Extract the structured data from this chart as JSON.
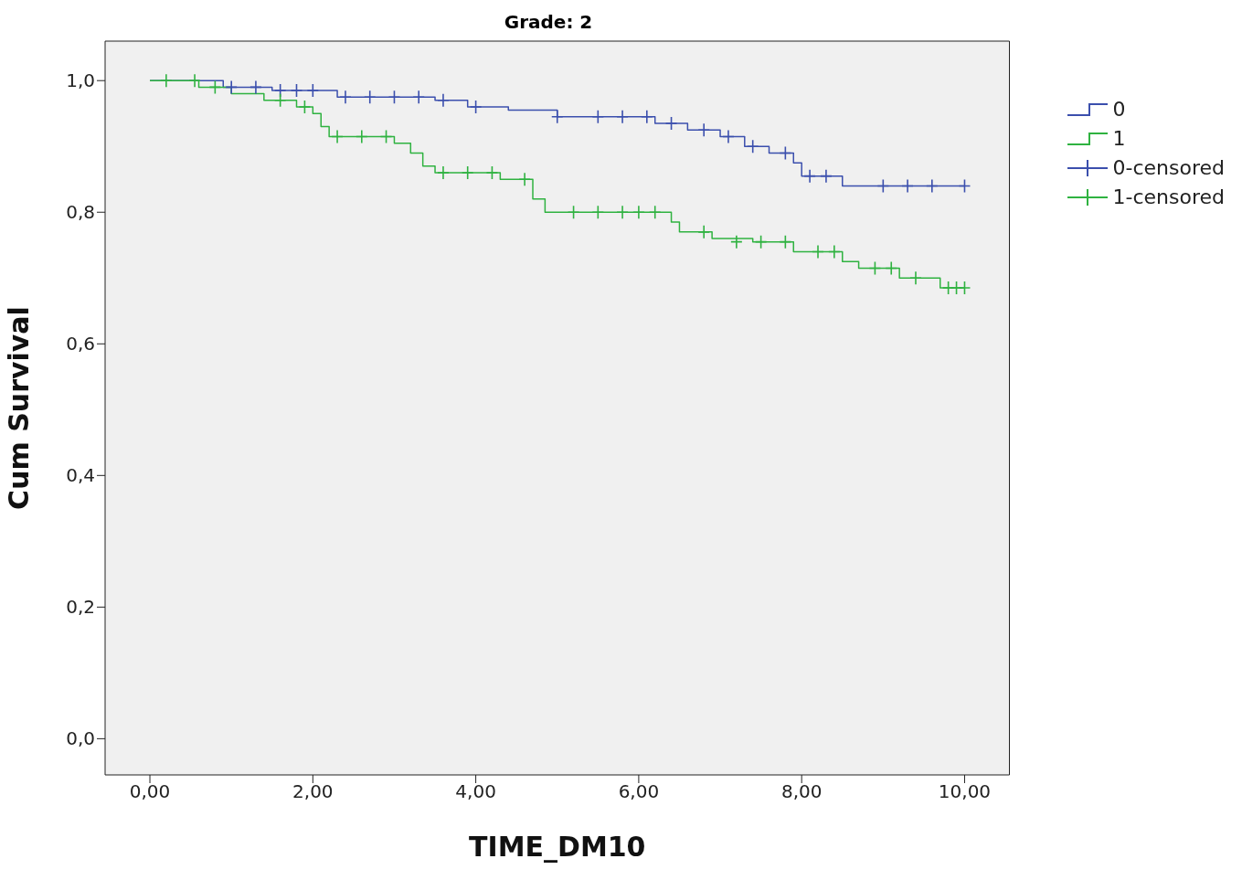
{
  "chart_data": {
    "type": "step",
    "title": "Grade: 2",
    "xlabel": "TIME_DM10",
    "ylabel": "Cum Survival",
    "xlim": [
      -0.55,
      10.55
    ],
    "ylim": [
      -0.055,
      1.06
    ],
    "xticks": [
      {
        "value": 0,
        "label": "0,00"
      },
      {
        "value": 2,
        "label": "2,00"
      },
      {
        "value": 4,
        "label": "4,00"
      },
      {
        "value": 6,
        "label": "6,00"
      },
      {
        "value": 8,
        "label": "8,00"
      },
      {
        "value": 10,
        "label": "10,00"
      }
    ],
    "yticks": [
      {
        "value": 0,
        "label": "0,0"
      },
      {
        "value": 0.2,
        "label": "0,2"
      },
      {
        "value": 0.4,
        "label": "0,4"
      },
      {
        "value": 0.6,
        "label": "0,6"
      },
      {
        "value": 0.8,
        "label": "0,8"
      },
      {
        "value": 1,
        "label": "1,0"
      }
    ],
    "grid": false,
    "legend": "top right",
    "series": [
      {
        "name": "0",
        "color": "#3b4fad",
        "x": [
          0,
          0.9,
          1.5,
          2.3,
          3.5,
          3.9,
          4.4,
          5.0,
          6.2,
          6.6,
          7.0,
          7.3,
          7.6,
          7.9,
          8.0,
          8.5,
          10.0
        ],
        "values": [
          1.0,
          0.99,
          0.985,
          0.975,
          0.97,
          0.96,
          0.955,
          0.945,
          0.935,
          0.925,
          0.915,
          0.9,
          0.89,
          0.875,
          0.855,
          0.84,
          0.84
        ]
      },
      {
        "name": "1",
        "color": "#2fb240",
        "x": [
          0,
          0.6,
          1.0,
          1.4,
          1.8,
          2.0,
          2.1,
          2.2,
          3.0,
          3.2,
          3.35,
          3.5,
          4.3,
          4.7,
          4.85,
          6.4,
          6.5,
          6.9,
          7.4,
          7.9,
          8.5,
          8.7,
          9.2,
          9.7,
          10.0
        ],
        "values": [
          1.0,
          0.99,
          0.98,
          0.97,
          0.96,
          0.95,
          0.93,
          0.915,
          0.905,
          0.89,
          0.87,
          0.86,
          0.85,
          0.82,
          0.8,
          0.785,
          0.77,
          0.76,
          0.755,
          0.74,
          0.725,
          0.715,
          0.7,
          0.685,
          0.685
        ]
      },
      {
        "name": "0-censored",
        "type": "scatter",
        "marker": "cross",
        "color": "#3b4fad",
        "x": [
          1.0,
          1.3,
          1.6,
          1.8,
          2.0,
          2.4,
          2.7,
          3.0,
          3.3,
          3.6,
          4.0,
          5.0,
          5.5,
          5.8,
          6.1,
          6.4,
          6.8,
          7.1,
          7.4,
          7.8,
          8.1,
          8.3,
          9.0,
          9.3,
          9.6,
          10.0
        ],
        "values": [
          0.99,
          0.99,
          0.985,
          0.985,
          0.985,
          0.975,
          0.975,
          0.975,
          0.975,
          0.97,
          0.96,
          0.945,
          0.945,
          0.945,
          0.945,
          0.935,
          0.925,
          0.915,
          0.9,
          0.89,
          0.855,
          0.855,
          0.84,
          0.84,
          0.84,
          0.84
        ]
      },
      {
        "name": "1-censored",
        "type": "scatter",
        "marker": "cross",
        "color": "#2fb240",
        "x": [
          0.2,
          0.55,
          0.8,
          1.6,
          1.9,
          2.3,
          2.6,
          2.9,
          3.6,
          3.9,
          4.2,
          4.6,
          5.2,
          5.5,
          5.8,
          6.0,
          6.2,
          6.8,
          7.2,
          7.5,
          7.8,
          8.2,
          8.4,
          8.9,
          9.1,
          9.4,
          9.8,
          9.9,
          10.0
        ],
        "values": [
          1.0,
          1.0,
          0.99,
          0.97,
          0.96,
          0.915,
          0.915,
          0.915,
          0.86,
          0.86,
          0.86,
          0.85,
          0.8,
          0.8,
          0.8,
          0.8,
          0.8,
          0.77,
          0.755,
          0.755,
          0.755,
          0.74,
          0.74,
          0.715,
          0.715,
          0.7,
          0.685,
          0.685,
          0.685
        ]
      }
    ]
  }
}
